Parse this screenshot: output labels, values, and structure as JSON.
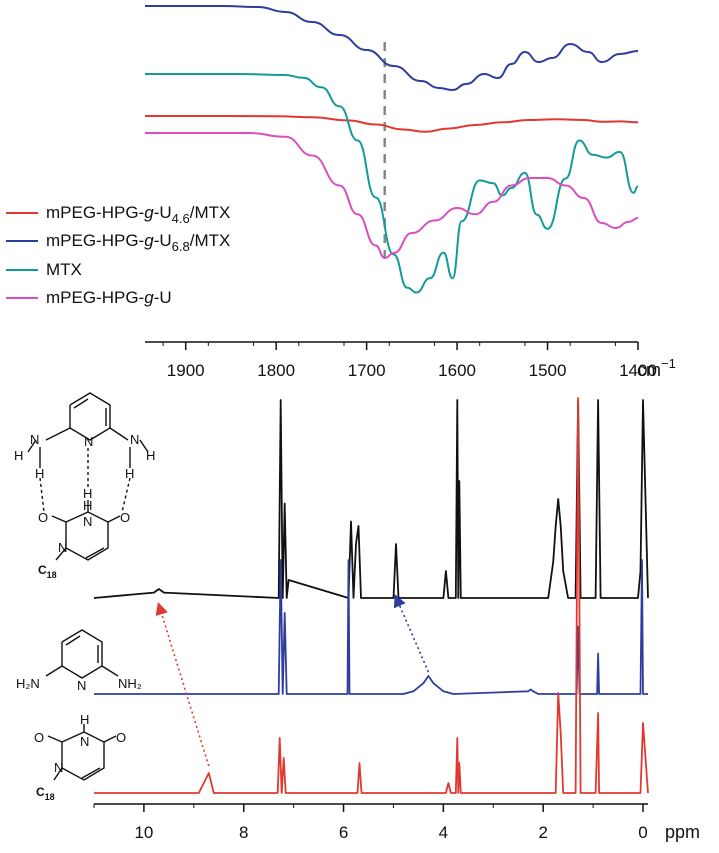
{
  "chart_data": [
    {
      "type": "line",
      "title": "",
      "xlabel": "cm⁻¹",
      "xlim": [
        1945,
        1400
      ],
      "reversed_x": true,
      "x_ticks": [
        1900,
        1800,
        1700,
        1600,
        1500,
        1400
      ],
      "x_tick_labels": [
        "1900",
        "1800",
        "1700",
        "1600",
        "1500",
        "1400"
      ],
      "unit_label": "cm",
      "unit_superscript": "−1",
      "reference_line_x": 1680,
      "legend_position": "left",
      "series": [
        {
          "name": "mPEG-HPG-g-U4.6/MTX",
          "legend_main": "mPEG-HPG-",
          "legend_italic": "g",
          "legend_mid": "-U",
          "legend_sub": "4.6",
          "legend_tail": "/MTX",
          "color": "#e0392f",
          "x": [
            1945,
            1860,
            1800,
            1760,
            1720,
            1690,
            1660,
            1635,
            1610,
            1580,
            1550,
            1520,
            1490,
            1460,
            1440,
            1420,
            1400
          ],
          "y": [
            0.0,
            0.0,
            -0.2,
            -1.5,
            -5.0,
            -9.5,
            -15.0,
            -17.5,
            -14.0,
            -10.0,
            -7.0,
            -4.5,
            -3.5,
            -4.5,
            -6.5,
            -6.0,
            -7.0
          ]
        },
        {
          "name": "mPEG-HPG-g-U6.8/MTX",
          "legend_main": "mPEG-HPG-",
          "legend_italic": "g",
          "legend_mid": "-U",
          "legend_sub": "6.8",
          "legend_tail": "/MTX",
          "color": "#2e3d9e",
          "x": [
            1945,
            1860,
            1820,
            1790,
            1760,
            1730,
            1700,
            1670,
            1640,
            1620,
            1605,
            1590,
            1570,
            1555,
            1540,
            1525,
            1510,
            1495,
            1475,
            1455,
            1440,
            1420,
            1400
          ],
          "y": [
            0.0,
            0.0,
            -1.0,
            -6.0,
            -16.0,
            -29.0,
            -44.0,
            -60.0,
            -75.0,
            -82.0,
            -84.0,
            -78.0,
            -68.0,
            -72.0,
            -58.0,
            -46.0,
            -56.0,
            -52.0,
            -38.0,
            -46.0,
            -56.0,
            -48.0,
            -45.0
          ]
        },
        {
          "name": "MTX",
          "legend_main": "MTX",
          "color": "#139a9a",
          "x": [
            1945,
            1840,
            1790,
            1770,
            1750,
            1730,
            1710,
            1690,
            1670,
            1655,
            1645,
            1630,
            1615,
            1605,
            1595,
            1575,
            1560,
            1550,
            1540,
            1525,
            1512,
            1500,
            1480,
            1465,
            1450,
            1435,
            1420,
            1405,
            1400
          ],
          "y": [
            0.0,
            0.0,
            -1.0,
            -4.0,
            -14.0,
            -34.0,
            -70.0,
            -130.0,
            -190.0,
            -225.0,
            -230.0,
            -215.0,
            -188.0,
            -215.0,
            -155.0,
            -112.0,
            -115.0,
            -128.0,
            -120.0,
            -104.0,
            -148.0,
            -163.0,
            -110.0,
            -70.0,
            -85.0,
            -88.0,
            -82.0,
            -125.0,
            -118.0
          ]
        },
        {
          "name": "mPEG-HPG-g-U",
          "legend_main": "mPEG-HPG-",
          "legend_italic": "g",
          "legend_mid": "-U",
          "color": "#d94fbf",
          "x": [
            1945,
            1830,
            1790,
            1760,
            1730,
            1710,
            1690,
            1680,
            1670,
            1650,
            1625,
            1600,
            1580,
            1560,
            1540,
            1520,
            1500,
            1480,
            1460,
            1440,
            1425,
            1410,
            1400
          ],
          "y": [
            0.0,
            0.0,
            -3.0,
            -18.0,
            -42.0,
            -65.0,
            -90.0,
            -100.0,
            -96.0,
            -80.0,
            -70.0,
            -60.0,
            -65.0,
            -55.0,
            -42.0,
            -36.0,
            -36.0,
            -42.0,
            -52.0,
            -72.0,
            -76.0,
            -71.0,
            -68.0
          ]
        }
      ]
    },
    {
      "type": "line",
      "title": "",
      "xlabel": "ppm",
      "xlim": [
        11.0,
        -0.1
      ],
      "reversed_x": true,
      "x_ticks": [
        10,
        8,
        6,
        4,
        2,
        0
      ],
      "x_tick_labels": [
        "10",
        "8",
        "6",
        "4",
        "2",
        "0"
      ],
      "unit_label": "ppm",
      "series": [
        {
          "name": "complex",
          "color": "#111111",
          "baseline": 0,
          "x": [
            11.0,
            9.8,
            9.7,
            9.6,
            7.3,
            7.26,
            7.22,
            7.18,
            7.14,
            7.1,
            5.9,
            5.85,
            5.8,
            5.75,
            5.7,
            5.65,
            5.6,
            5.0,
            4.95,
            4.9,
            4.85,
            4.0,
            3.95,
            3.9,
            3.75,
            3.72,
            3.7,
            3.68,
            3.65,
            2.6,
            1.9,
            1.8,
            1.75,
            1.7,
            1.65,
            1.6,
            1.5,
            1.35,
            1.3,
            1.25,
            1.2,
            0.95,
            0.9,
            0.85,
            0.8,
            0.1,
            0.05,
            0.0,
            -0.1
          ],
          "y": [
            0,
            6,
            10,
            6,
            0,
            220,
            0,
            105,
            0,
            20,
            0,
            85,
            0,
            60,
            80,
            0,
            0,
            0,
            60,
            0,
            0,
            0,
            30,
            0,
            0,
            220,
            0,
            130,
            0,
            0,
            0,
            40,
            80,
            110,
            80,
            30,
            0,
            0,
            220,
            0,
            0,
            0,
            220,
            0,
            0,
            0,
            30,
            220,
            0
          ]
        },
        {
          "name": "2,6-diaminopyridine",
          "color": "#2e3d9e",
          "baseline": 0,
          "x": [
            11.0,
            7.3,
            7.26,
            7.22,
            7.18,
            7.14,
            6.0,
            5.92,
            5.9,
            5.88,
            5.86,
            4.8,
            4.6,
            4.4,
            4.3,
            4.2,
            4.0,
            3.8,
            2.3,
            2.25,
            2.2,
            2.1,
            1.4,
            1.33,
            1.3,
            1.27,
            1.2,
            0.95,
            0.92,
            0.9,
            0.88,
            0.85,
            0.1,
            0.05,
            0.02,
            0.0,
            -0.1
          ],
          "y": [
            0,
            0,
            170,
            0,
            90,
            0,
            0,
            0,
            150,
            0,
            0,
            0,
            3,
            12,
            20,
            12,
            3,
            0,
            3,
            5,
            3,
            0,
            0,
            0,
            75,
            0,
            0,
            0,
            0,
            45,
            0,
            0,
            0,
            0,
            170,
            0,
            0
          ]
        },
        {
          "name": "C18-uracil",
          "color": "#e0392f",
          "baseline": 0,
          "x": [
            11.0,
            8.9,
            8.7,
            8.6,
            7.32,
            7.28,
            7.24,
            7.2,
            7.16,
            7.12,
            5.8,
            5.72,
            5.68,
            5.64,
            5.6,
            3.95,
            3.9,
            3.85,
            3.75,
            3.72,
            3.7,
            3.68,
            3.65,
            1.75,
            1.7,
            1.65,
            1.6,
            1.4,
            1.35,
            1.3,
            1.25,
            1.2,
            0.95,
            0.9,
            0.88,
            0.85,
            0.8,
            0.1,
            0.05,
            0.0,
            -0.1
          ],
          "y": [
            0,
            0,
            20,
            0,
            0,
            55,
            0,
            35,
            0,
            0,
            0,
            0,
            30,
            0,
            0,
            0,
            10,
            0,
            0,
            55,
            0,
            30,
            0,
            0,
            100,
            60,
            0,
            0,
            0,
            400,
            0,
            0,
            0,
            80,
            0,
            0,
            0,
            0,
            0,
            70,
            0
          ]
        }
      ],
      "annotations": [
        {
          "from_x": 8.7,
          "to_x": 9.7,
          "color": "#e0392f",
          "style": "dotted-arrow"
        },
        {
          "from_x": 4.3,
          "to_x": 4.95,
          "color": "#2e3d9e",
          "style": "dotted-arrow"
        }
      ]
    }
  ],
  "structures": {
    "complex_labels": {
      "h_top_left": "H",
      "n_left": "N",
      "n_ring": "N",
      "n_right": "N",
      "h_top_right": "H",
      "h_mid_left": "H",
      "h_mid_center": "H",
      "h_mid_right": "H",
      "h_imide": "H",
      "o_left": "O",
      "o_right": "O",
      "n_imide": "N",
      "n_c18": "N",
      "c18": "C",
      "c18_sub": "18"
    },
    "dap_labels": {
      "h2n": "H₂N",
      "n_ring": "N",
      "nh2": "NH₂"
    },
    "uracil_labels": {
      "h": "H",
      "o_left": "O",
      "n_imide": "N",
      "o_right": "O",
      "n_c18": "N",
      "c18": "C",
      "c18_sub": "18"
    }
  }
}
